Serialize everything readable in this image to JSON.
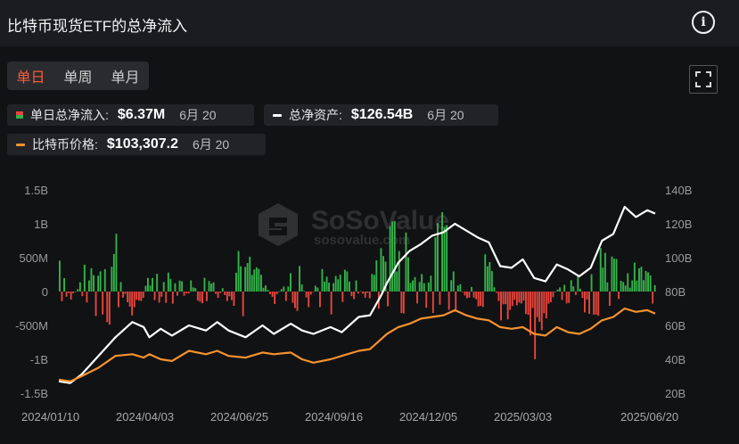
{
  "header": {
    "title": "比特币现货ETF的总净流入"
  },
  "tabs": [
    {
      "label": "单日",
      "active": true
    },
    {
      "label": "单周",
      "active": false
    },
    {
      "label": "单月",
      "active": false
    }
  ],
  "legend": {
    "daily_inflow": {
      "label": "单日总净流入:",
      "value": "$6.37M",
      "date": "6月 20",
      "colors": [
        "#e8453c",
        "#33b249"
      ]
    },
    "total_assets": {
      "label": "总净资产:",
      "value": "$126.54B",
      "date": "6月 20",
      "color": "#ffffff"
    },
    "btc_price": {
      "label": "比特币价格:",
      "value": "$103,307.2",
      "date": "6月 20",
      "color": "#f5922f"
    }
  },
  "watermark": {
    "brand": "SoSoValue",
    "url": "sosovalue.com"
  },
  "chart_data": {
    "type": "bar+line",
    "x_labels": [
      "2024/01/10",
      "2024/04/03",
      "2024/06/25",
      "2024/09/16",
      "2024/12/05",
      "2025/03/03",
      "2025/06/20"
    ],
    "left_axis": {
      "ticks": [
        "1.5B",
        "1B",
        "500M",
        "0",
        "-500M",
        "-1B",
        "-1.5B"
      ],
      "tick_values": [
        1.5,
        1,
        0.5,
        0,
        -0.5,
        -1,
        -1.5
      ],
      "range": [
        -1.5,
        1.5
      ],
      "unit": "USD billions"
    },
    "right_axis": {
      "ticks": [
        "140B",
        "120B",
        "100B",
        "80B",
        "60B",
        "40B",
        "20B"
      ],
      "tick_values": [
        140,
        120,
        100,
        80,
        60,
        40,
        20
      ],
      "range": [
        20,
        140
      ],
      "unit": "USD billions"
    },
    "bar_colors": {
      "positive": "#33b249",
      "negative": "#e8453c"
    },
    "series": [
      {
        "name": "单日总净流入",
        "type": "bar",
        "axis": "left",
        "sample_days": [
          0,
          10,
          20,
          30,
          40,
          50,
          60,
          70,
          80,
          90,
          100,
          110,
          120,
          130,
          140,
          150,
          160,
          170,
          180,
          190,
          200,
          210,
          220,
          230,
          240,
          250,
          260,
          270,
          280,
          290,
          300,
          310,
          320,
          330,
          340,
          350,
          360,
          370,
          380,
          390,
          400,
          410,
          420,
          430,
          440,
          450,
          460,
          470,
          480,
          490,
          500,
          510,
          520
        ],
        "values": [
          0.6,
          -0.2,
          0.3,
          0.5,
          0.6,
          1.0,
          -0.3,
          -0.4,
          0.4,
          0.2,
          0.3,
          0.1,
          0.2,
          0.7,
          -0.1,
          0.3,
          0.6,
          0.4,
          0.2,
          -0.2,
          0.3,
          0.5,
          -0.3,
          0.4,
          0.6,
          0.3,
          0.2,
          -0.1,
          0.6,
          0.8,
          1.1,
          0.5,
          0.3,
          0.9,
          1.0,
          0.4,
          -0.3,
          0.6,
          0.5,
          -0.4,
          -0.5,
          -0.3,
          -1.0,
          -0.4,
          0.1,
          0.3,
          0.2,
          0.8,
          0.7,
          0.5,
          0.2,
          0.4,
          0.3
        ]
      },
      {
        "name": "总净资产",
        "type": "line",
        "axis": "right",
        "x_days": [
          0,
          10,
          20,
          35,
          50,
          65,
          75,
          80,
          90,
          100,
          115,
          130,
          140,
          150,
          165,
          180,
          190,
          205,
          215,
          225,
          240,
          250,
          265,
          275,
          285,
          290,
          300,
          310,
          320,
          330,
          340,
          350,
          360,
          370,
          380,
          390,
          400,
          410,
          420,
          430,
          440,
          450,
          460,
          470,
          480,
          490,
          500,
          510,
          520,
          527
        ],
        "values": [
          27,
          26,
          31,
          42,
          53,
          62,
          59,
          53,
          58,
          54,
          60,
          57,
          62,
          57,
          53,
          60,
          55,
          61,
          57,
          55,
          59,
          56,
          65,
          66,
          78,
          85,
          97,
          104,
          108,
          113,
          115,
          120,
          116,
          112,
          109,
          95,
          94,
          99,
          88,
          86,
          96,
          93,
          89,
          94,
          110,
          114,
          130,
          124,
          128,
          126
        ]
      },
      {
        "name": "比特币价格",
        "type": "line",
        "axis": "right",
        "x_days": [
          0,
          10,
          20,
          35,
          50,
          65,
          75,
          80,
          90,
          100,
          115,
          130,
          140,
          150,
          165,
          180,
          190,
          205,
          215,
          225,
          240,
          250,
          265,
          275,
          285,
          290,
          300,
          310,
          320,
          330,
          340,
          350,
          360,
          370,
          380,
          390,
          400,
          410,
          420,
          430,
          440,
          450,
          460,
          470,
          480,
          490,
          500,
          510,
          520,
          527
        ],
        "values": [
          28,
          27,
          30,
          35,
          42,
          43,
          41,
          43,
          40,
          39,
          45,
          43,
          45,
          42,
          41,
          44,
          43,
          44,
          40,
          38,
          40,
          42,
          45,
          46,
          52,
          55,
          59,
          61,
          64,
          65,
          66,
          69,
          66,
          64,
          63,
          59,
          58,
          59,
          55,
          54,
          59,
          56,
          55,
          58,
          63,
          65,
          70,
          68,
          69,
          67
        ]
      }
    ]
  }
}
